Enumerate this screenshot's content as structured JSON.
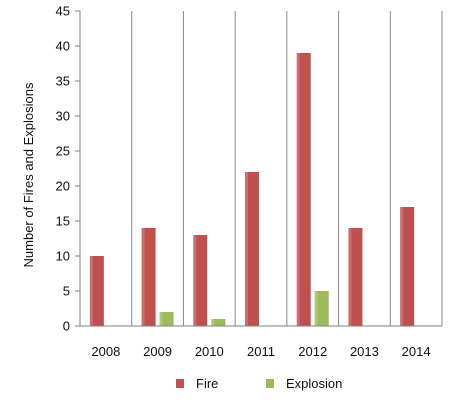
{
  "chart_data": {
    "type": "bar",
    "categories": [
      "2008",
      "2009",
      "2010",
      "2011",
      "2012",
      "2013",
      "2014"
    ],
    "series": [
      {
        "name": "Fire",
        "values": [
          10,
          14,
          13,
          22,
          39,
          14,
          17
        ],
        "color": "#c0504d"
      },
      {
        "name": "Explosion",
        "values": [
          0,
          2,
          1,
          0,
          5,
          0,
          0
        ],
        "color": "#9bbb59"
      }
    ],
    "title": "",
    "xlabel": "",
    "ylabel": "Number of Fires and Explosions",
    "ylim": [
      0,
      45
    ],
    "yticks": [
      "0",
      "5",
      "10",
      "15",
      "20",
      "25",
      "30",
      "35",
      "40",
      "45"
    ],
    "grid": "vertical lines between categories",
    "legend_position": "bottom"
  }
}
